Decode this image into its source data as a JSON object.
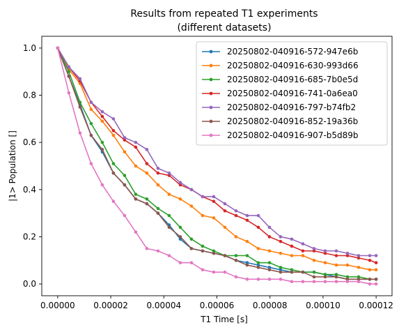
{
  "chart_data": {
    "type": "line",
    "title": [
      "Results from repeated T1 experiments",
      "(different datasets)"
    ],
    "xlabel": "T1 Time [s]",
    "ylabel": "|1> Population []",
    "xlim": [
      -6e-06,
      0.000126
    ],
    "ylim": [
      -0.05,
      1.05
    ],
    "xticks": [
      0,
      2e-05,
      4e-05,
      6e-05,
      8e-05,
      0.0001,
      0.00012
    ],
    "xtick_labels": [
      "0.00000",
      "0.00002",
      "0.00004",
      "0.00006",
      "0.00008",
      "0.00010",
      "0.00012"
    ],
    "yticks": [
      0,
      0.2,
      0.4,
      0.6,
      0.8,
      1.0
    ],
    "ytick_labels": [
      "0.0",
      "0.2",
      "0.4",
      "0.6",
      "0.8",
      "1.0"
    ],
    "grid": false,
    "legend_position": "top-right",
    "x": [
      0,
      4.2e-06,
      8.4e-06,
      1.26e-05,
      1.68e-05,
      2.1e-05,
      2.52e-05,
      2.94e-05,
      3.36e-05,
      3.78e-05,
      4.2e-05,
      4.62e-05,
      5.04e-05,
      5.46e-05,
      5.88e-05,
      6.3e-05,
      6.72e-05,
      7.14e-05,
      7.56e-05,
      7.98e-05,
      8.4e-05,
      8.82e-05,
      9.24e-05,
      9.66e-05,
      0.0001008,
      0.000105,
      0.0001092,
      0.0001134,
      0.0001176,
      0.00012
    ],
    "series": [
      {
        "name": "20250802-040916-572-947e6b",
        "color": "#1f77b4",
        "values": [
          1.0,
          0.88,
          0.76,
          0.63,
          0.56,
          0.47,
          0.42,
          0.36,
          0.34,
          0.3,
          0.25,
          0.19,
          0.15,
          0.14,
          0.13,
          0.12,
          0.1,
          0.09,
          0.08,
          0.07,
          0.06,
          0.05,
          0.05,
          0.05,
          0.04,
          0.03,
          0.02,
          0.02,
          0.02,
          0.02
        ]
      },
      {
        "name": "20250802-040916-630-993d66",
        "color": "#ff7f0e",
        "values": [
          1.0,
          0.91,
          0.85,
          0.74,
          0.69,
          0.63,
          0.56,
          0.5,
          0.47,
          0.42,
          0.38,
          0.36,
          0.33,
          0.29,
          0.28,
          0.24,
          0.2,
          0.18,
          0.15,
          0.14,
          0.13,
          0.12,
          0.12,
          0.1,
          0.09,
          0.08,
          0.08,
          0.07,
          0.06,
          0.06
        ]
      },
      {
        "name": "20250802-040916-685-7b0e5d",
        "color": "#2ca02c",
        "values": [
          1.0,
          0.9,
          0.77,
          0.68,
          0.6,
          0.51,
          0.46,
          0.38,
          0.36,
          0.32,
          0.29,
          0.24,
          0.19,
          0.16,
          0.14,
          0.12,
          0.12,
          0.12,
          0.09,
          0.09,
          0.07,
          0.06,
          0.05,
          0.05,
          0.04,
          0.04,
          0.03,
          0.03,
          0.02,
          0.02
        ]
      },
      {
        "name": "20250802-040916-741-0a6ea0",
        "color": "#d62728",
        "values": [
          1.0,
          0.92,
          0.86,
          0.77,
          0.71,
          0.65,
          0.61,
          0.58,
          0.51,
          0.47,
          0.46,
          0.42,
          0.4,
          0.37,
          0.35,
          0.31,
          0.29,
          0.27,
          0.24,
          0.2,
          0.18,
          0.16,
          0.14,
          0.14,
          0.13,
          0.12,
          0.12,
          0.11,
          0.1,
          0.09
        ]
      },
      {
        "name": "20250802-040916-797-b74fb2",
        "color": "#9467bd",
        "values": [
          1.0,
          0.92,
          0.87,
          0.77,
          0.73,
          0.7,
          0.62,
          0.6,
          0.57,
          0.49,
          0.47,
          0.43,
          0.4,
          0.37,
          0.37,
          0.34,
          0.31,
          0.29,
          0.29,
          0.24,
          0.2,
          0.19,
          0.17,
          0.15,
          0.14,
          0.14,
          0.13,
          0.12,
          0.12,
          0.12
        ]
      },
      {
        "name": "20250802-040916-852-19a36b",
        "color": "#8c564b",
        "values": [
          1.0,
          0.88,
          0.75,
          0.63,
          0.57,
          0.47,
          0.42,
          0.36,
          0.34,
          0.3,
          0.24,
          0.2,
          0.15,
          0.14,
          0.13,
          0.12,
          0.1,
          0.08,
          0.07,
          0.06,
          0.05,
          0.05,
          0.05,
          0.03,
          0.03,
          0.03,
          0.02,
          0.02,
          0.02,
          0.02
        ]
      },
      {
        "name": "20250802-040916-907-b5d89b",
        "color": "#e377c2",
        "values": [
          1.0,
          0.81,
          0.64,
          0.51,
          0.42,
          0.35,
          0.29,
          0.22,
          0.15,
          0.14,
          0.12,
          0.09,
          0.09,
          0.06,
          0.05,
          0.05,
          0.03,
          0.02,
          0.02,
          0.02,
          0.02,
          0.01,
          0.01,
          0.01,
          0.01,
          0.01,
          0.01,
          0.01,
          0.0,
          0.0
        ]
      }
    ]
  }
}
